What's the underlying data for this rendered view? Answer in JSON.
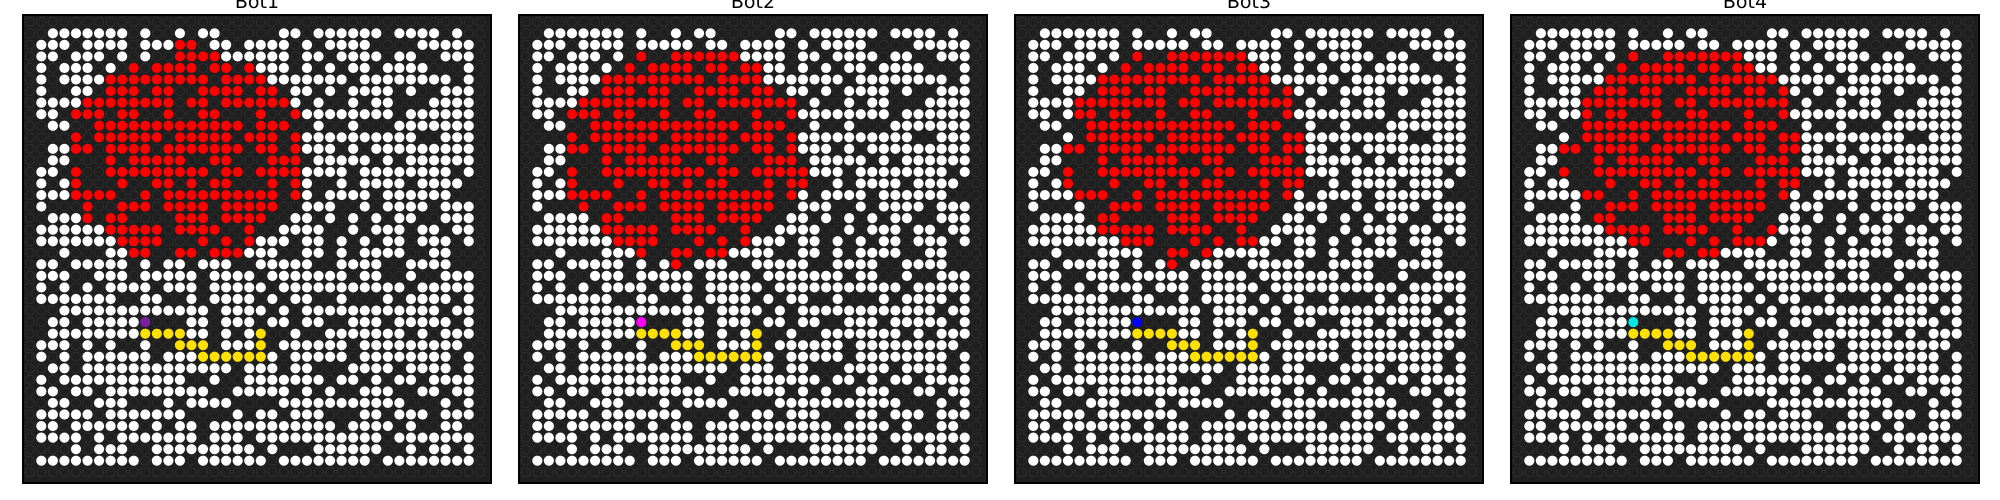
{
  "figure": {
    "panels": [
      {
        "title": "Bot1",
        "bot_color": "#7b1fa2"
      },
      {
        "title": "Bot2",
        "bot_color": "#ff00ff"
      },
      {
        "title": "Bot3",
        "bot_color": "#0000ff"
      },
      {
        "title": "Bot4",
        "bot_color": "#00e5e5"
      }
    ]
  },
  "grid": {
    "rows": 40,
    "cols": 40
  },
  "colors": {
    "wall": "#1f1f1f",
    "open": "#ffffff",
    "fire": "#ff0000",
    "path": "#ffe100",
    "border": "#000000"
  },
  "legend_semantics": {
    "dark_cell": "blocked",
    "white_cell": "open",
    "red_cell": "fire",
    "yellow_cell": "path"
  }
}
